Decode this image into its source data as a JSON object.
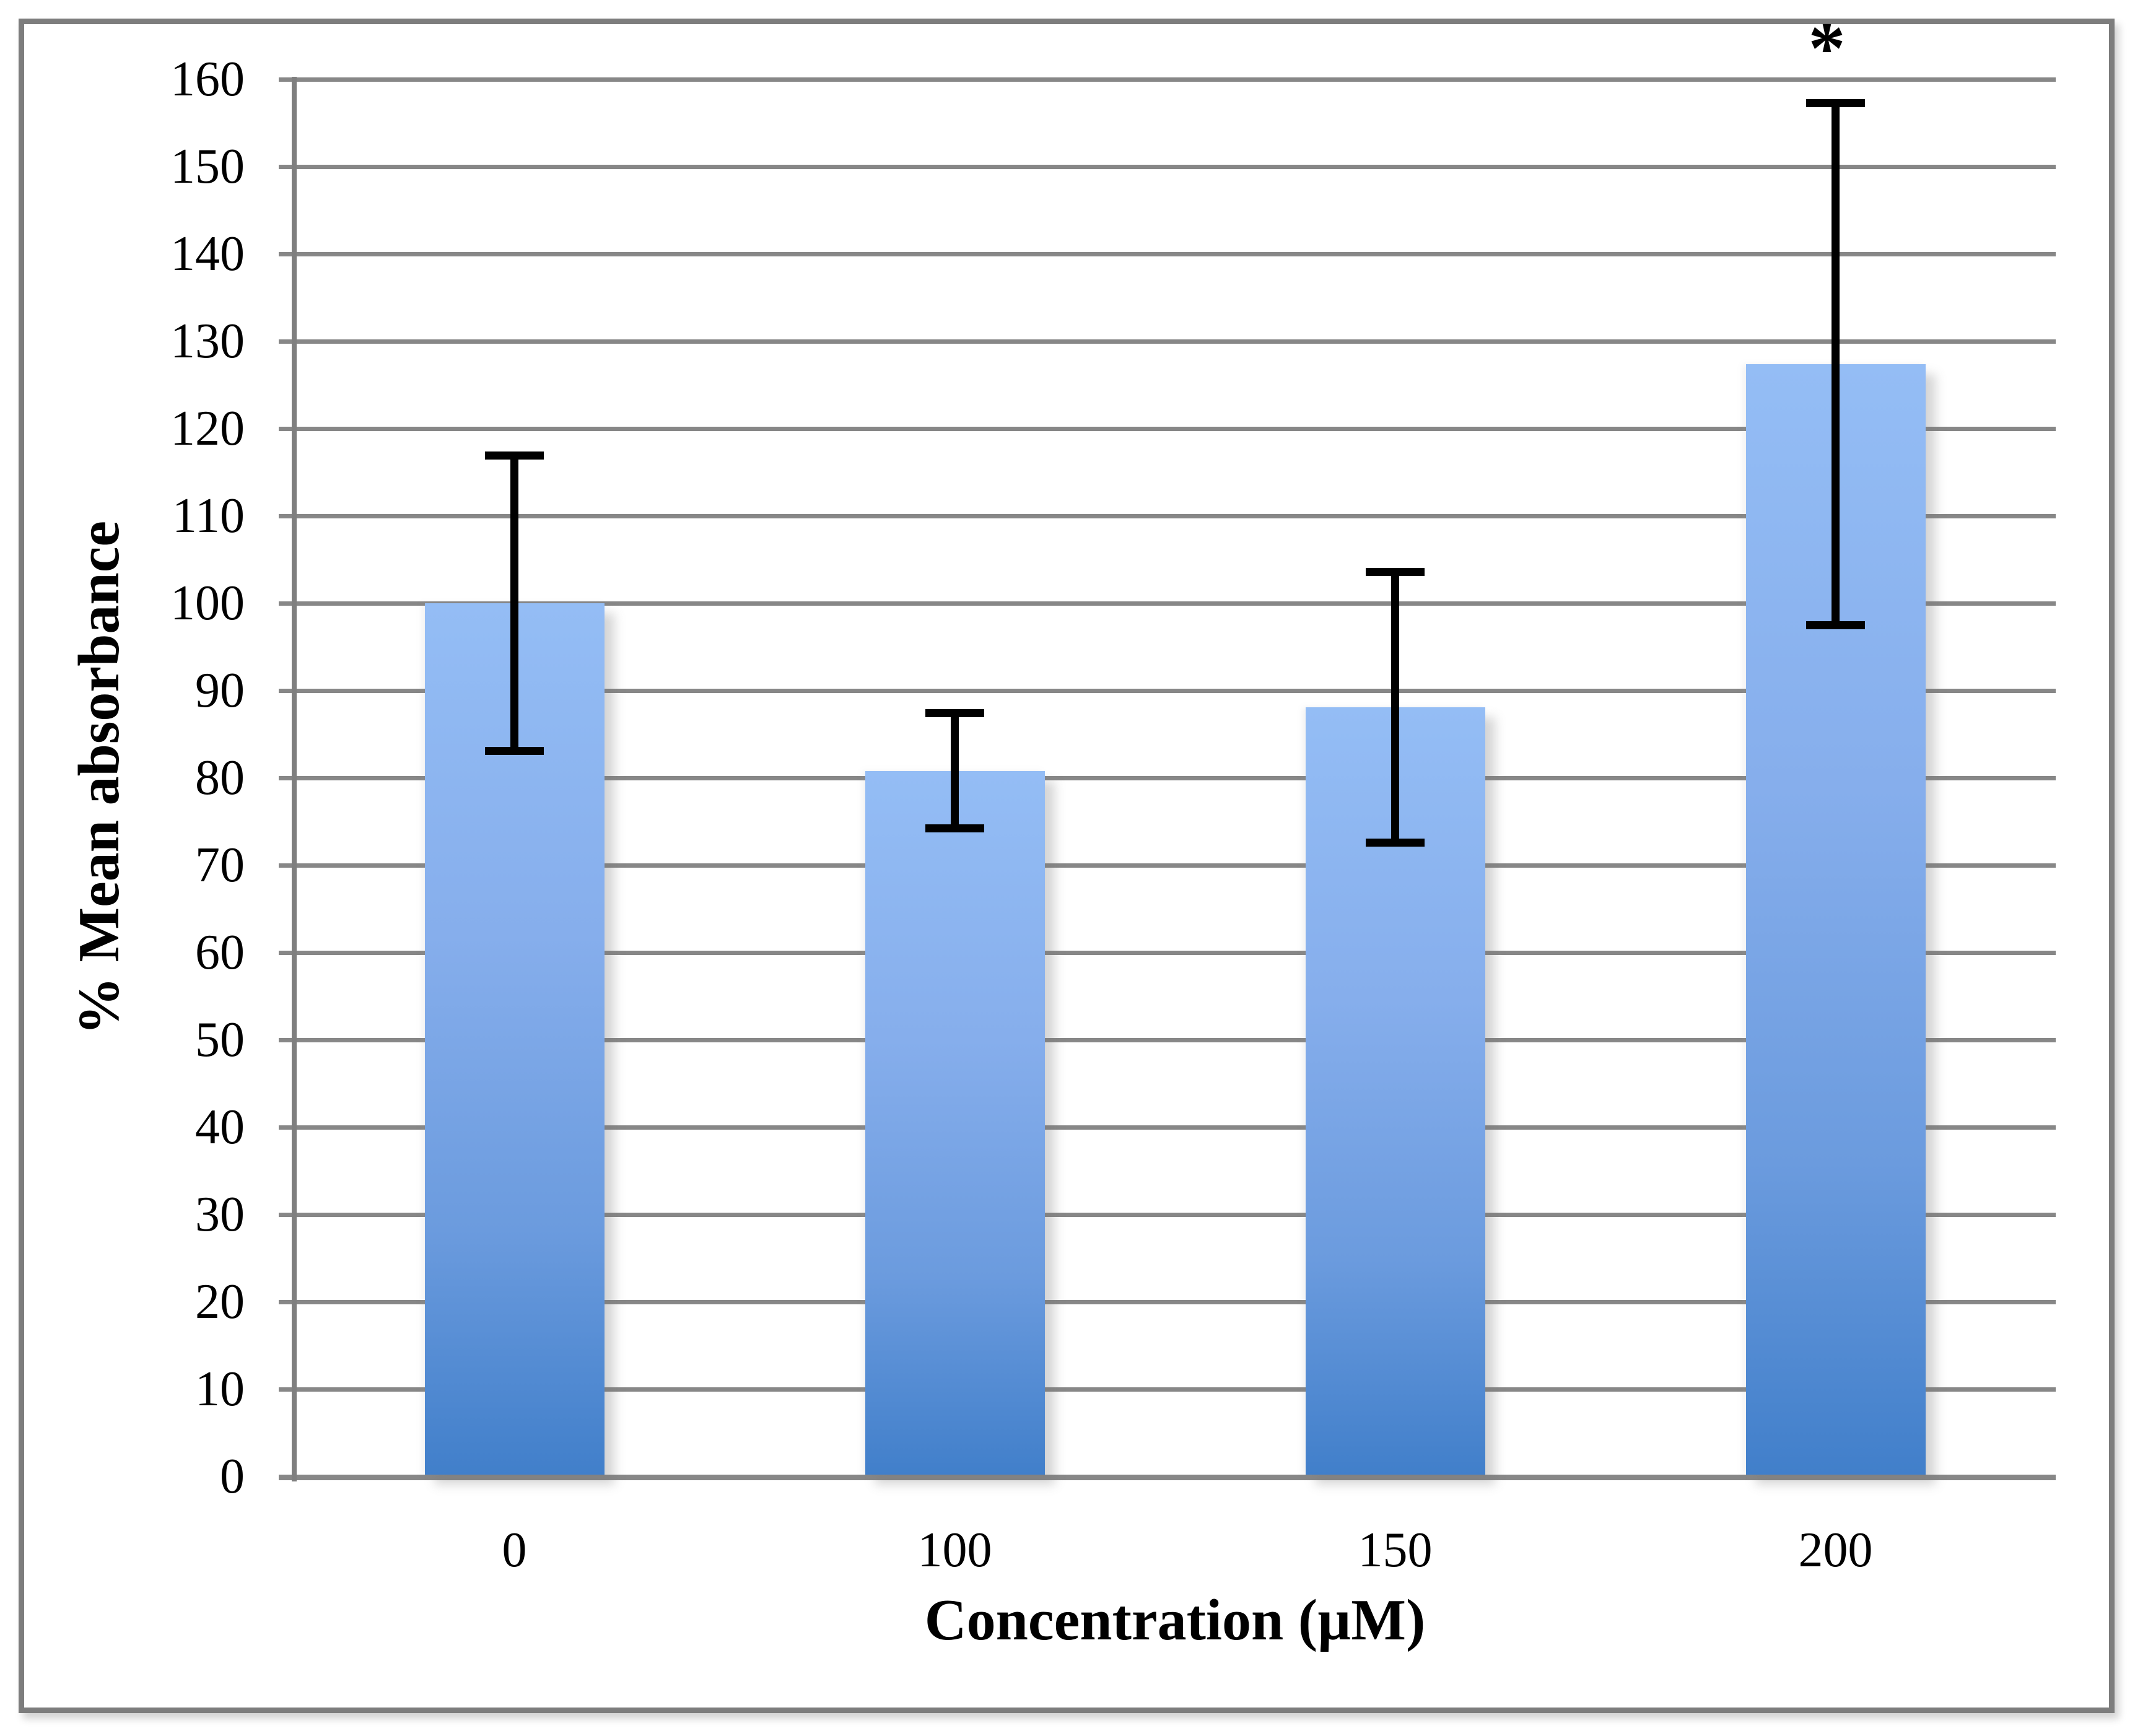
{
  "chart_data": {
    "type": "bar",
    "title": "",
    "xlabel": "Concentration (µM)",
    "ylabel": "% Mean absorbance",
    "categories": [
      "0",
      "100",
      "150",
      "200"
    ],
    "values": [
      100.0,
      80.8,
      88.1,
      127.4
    ],
    "error_bars": [
      16.9,
      6.6,
      15.5,
      29.9
    ],
    "ylim": [
      0,
      160
    ],
    "ytick_step": 10,
    "yticks": [
      "0",
      "10",
      "20",
      "30",
      "40",
      "50",
      "60",
      "70",
      "80",
      "90",
      "100",
      "110",
      "120",
      "130",
      "140",
      "150",
      "160"
    ],
    "grid": true,
    "legend_position": "none",
    "annotations": [
      {
        "category": "200",
        "category_index": 3,
        "text": "*"
      }
    ],
    "colors": {
      "bar_gradient_top": "#94bdf5",
      "bar_gradient_bottom": "#417fca",
      "gridline": "#878787",
      "axis": "#7f7f7f",
      "error_bar": "#000000",
      "text": "#000000",
      "background": "#ffffff",
      "figure_border": "#7d7d7d"
    }
  }
}
